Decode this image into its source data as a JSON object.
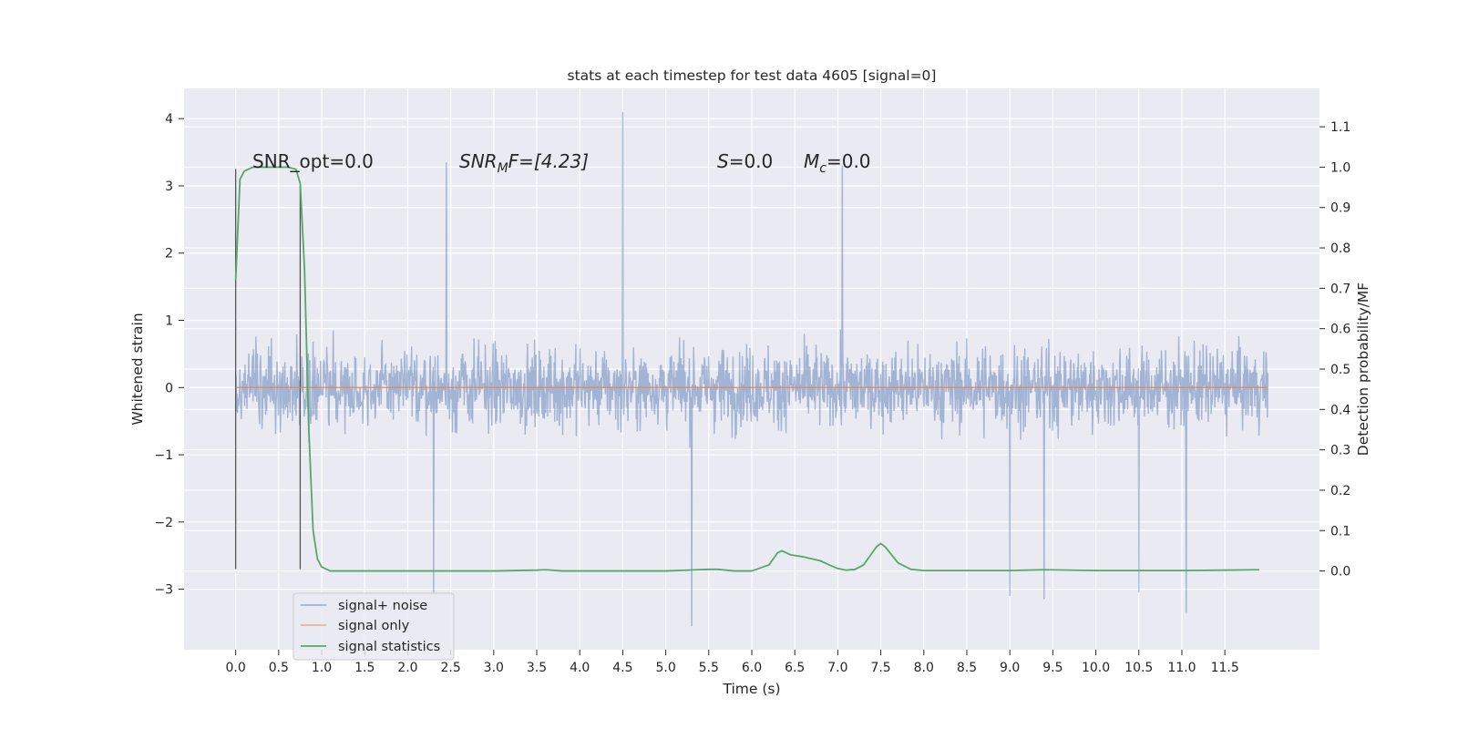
{
  "chart_data": {
    "type": "line",
    "title": "stats at each timestep for test data 4605 [signal=0]",
    "xlabel": "Time (s)",
    "ylabel_left": "Whitened strain",
    "ylabel_right": "Detection probability/MF",
    "xlim": [
      -0.6,
      12.6
    ],
    "ylim_left": [
      -3.9,
      4.45
    ],
    "ylim_right": [
      -0.195,
      1.195
    ],
    "x_ticks": [
      0.0,
      0.5,
      1.0,
      1.5,
      2.0,
      2.5,
      3.0,
      3.5,
      4.0,
      4.5,
      5.0,
      5.5,
      6.0,
      6.5,
      7.0,
      7.5,
      8.0,
      8.5,
      9.0,
      9.5,
      10.0,
      10.5,
      11.0,
      11.5
    ],
    "x_tick_labels": [
      "0.0",
      "0.5",
      "1.0",
      "1.5",
      "2.0",
      "2.5",
      "3.0",
      "3.5",
      "4.0",
      "4.5",
      "5.0",
      "5.5",
      "6.0",
      "6.5",
      "7.0",
      "7.5",
      "8.0",
      "8.5",
      "9.0",
      "9.5",
      "10.0",
      "10.5",
      "11.0",
      "11.5"
    ],
    "y_left_ticks": [
      -3,
      -2,
      -1,
      0,
      1,
      2,
      3,
      4
    ],
    "y_left_tick_labels": [
      "−3",
      "−2",
      "−1",
      "0",
      "1",
      "2",
      "3",
      "4"
    ],
    "y_right_ticks": [
      0.0,
      0.1,
      0.2,
      0.3,
      0.4,
      0.5,
      0.6,
      0.7,
      0.8,
      0.9,
      1.0,
      1.1
    ],
    "y_right_tick_labels": [
      "0.0",
      "0.1",
      "0.2",
      "0.3",
      "0.4",
      "0.5",
      "0.6",
      "0.7",
      "0.8",
      "0.9",
      "1.0",
      "1.1"
    ],
    "grid": true,
    "legend_position": "lower-left",
    "series": [
      {
        "name": "signal+ noise",
        "color": "#4c72b0",
        "axis": "left",
        "style": "noise band",
        "x_range": [
          0.0,
          12.0
        ],
        "typical_range": [
          -1.5,
          1.5
        ],
        "notable_spikes": [
          {
            "x": 4.5,
            "y": 4.1
          },
          {
            "x": 2.45,
            "y": 3.35
          },
          {
            "x": 7.05,
            "y": 3.3
          },
          {
            "x": 5.3,
            "y": -3.55
          },
          {
            "x": 11.05,
            "y": -3.35
          },
          {
            "x": 2.3,
            "y": -3.05
          },
          {
            "x": 10.5,
            "y": -3.05
          },
          {
            "x": 9.4,
            "y": -3.15
          },
          {
            "x": 9.0,
            "y": -3.1
          }
        ]
      },
      {
        "name": "signal only",
        "color": "#dd8452",
        "axis": "left",
        "x": [
          0.0,
          12.0
        ],
        "y": [
          0.0,
          0.0
        ]
      },
      {
        "name": "signal statistics",
        "color": "#55a868",
        "axis": "right",
        "x": [
          0.0,
          0.05,
          0.1,
          0.2,
          0.3,
          0.4,
          0.5,
          0.6,
          0.7,
          0.75,
          0.8,
          0.85,
          0.9,
          0.95,
          1.0,
          1.1,
          2.0,
          3.0,
          3.5,
          3.6,
          3.8,
          4.5,
          5.0,
          5.5,
          5.6,
          5.8,
          6.0,
          6.2,
          6.3,
          6.35,
          6.45,
          6.6,
          6.8,
          6.9,
          7.0,
          7.1,
          7.2,
          7.3,
          7.4,
          7.45,
          7.5,
          7.55,
          7.7,
          7.85,
          8.0,
          9.0,
          9.4,
          10.0,
          11.0,
          11.5,
          11.9
        ],
        "y": [
          0.72,
          0.97,
          0.99,
          1.0,
          1.0,
          1.0,
          1.0,
          1.0,
          0.995,
          0.96,
          0.75,
          0.35,
          0.1,
          0.03,
          0.01,
          0.0,
          0.0,
          0.0,
          0.002,
          0.003,
          0.0,
          0.0,
          0.0,
          0.004,
          0.004,
          0.0,
          0.0,
          0.015,
          0.045,
          0.05,
          0.04,
          0.035,
          0.025,
          0.015,
          0.006,
          0.002,
          0.004,
          0.015,
          0.045,
          0.06,
          0.068,
          0.06,
          0.02,
          0.004,
          0.001,
          0.001,
          0.003,
          0.001,
          0.001,
          0.002,
          0.003
        ]
      }
    ],
    "markers": [
      {
        "x": 0.0,
        "y_bottom": -2.7,
        "y_top": 3.25
      },
      {
        "x": 0.75,
        "y_bottom": -2.7,
        "y_top": 3.0
      }
    ],
    "annotations": [
      {
        "text": "SNR_opt=0.0"
      },
      {
        "text": "SNR",
        "sub": "M",
        "tail": "F=[4.23]"
      },
      {
        "text": "S",
        "tail": "=0.0"
      },
      {
        "text": "M",
        "sub": "c",
        "tail": "=0.0"
      }
    ]
  },
  "colors": {
    "plot_background": "#eaeaf2",
    "grid": "#ffffff"
  }
}
